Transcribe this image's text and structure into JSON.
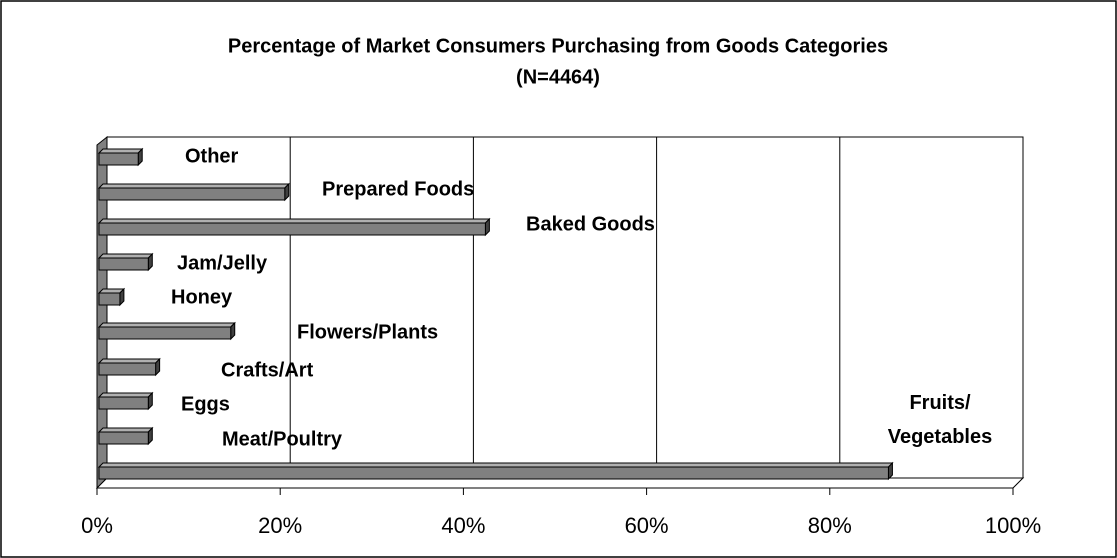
{
  "chart_data": {
    "type": "bar",
    "orientation": "horizontal",
    "title": "Percentage of Market Consumers Purchasing from Goods Categories",
    "subtitle": "(N=4464)",
    "categories": [
      "Other",
      "Prepared Foods",
      "Baked Goods",
      "Jam/Jelly",
      "Honey",
      "Flowers/Plants",
      "Crafts/Art",
      "Eggs",
      "Meat/Poultry",
      "Fruits/ Vegetables"
    ],
    "values": [
      4.5,
      20.5,
      42.4,
      5.6,
      2.5,
      14.6,
      6.4,
      5.6,
      5.6,
      86.4
    ],
    "color": "#808080",
    "xlim": [
      0,
      100
    ],
    "xticks": [
      {
        "value": 0,
        "label": "0%"
      },
      {
        "value": 20,
        "label": "20%"
      },
      {
        "value": 40,
        "label": "40%"
      },
      {
        "value": 60,
        "label": "60%"
      },
      {
        "value": 80,
        "label": "80%"
      },
      {
        "value": 100,
        "label": "100%"
      }
    ],
    "grid": true
  }
}
